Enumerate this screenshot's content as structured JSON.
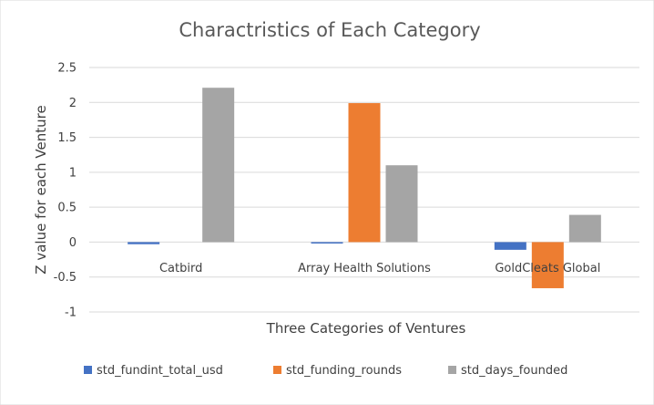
{
  "chart_data": {
    "type": "bar",
    "title": "Charactristics of Each Category",
    "xlabel": "Three Categories of Ventures",
    "ylabel": "Z value for each  Venture",
    "categories": [
      "Catbird",
      "Array Health Solutions",
      "GoldCleats Global"
    ],
    "series": [
      {
        "name": "std_fundint_total_usd",
        "color": "#4472C4",
        "values": [
          -0.03,
          -0.02,
          -0.11
        ]
      },
      {
        "name": "std_funding_rounds",
        "color": "#ED7D31",
        "values": [
          0.0,
          1.99,
          -0.66
        ]
      },
      {
        "name": "std_days_founded",
        "color": "#A5A5A5",
        "values": [
          2.21,
          1.1,
          0.39
        ]
      }
    ],
    "ylim": [
      -1,
      2.5
    ],
    "yticks": [
      2.5,
      2,
      1.5,
      1,
      0.5,
      0,
      -0.5,
      -1
    ],
    "ytick_labels": [
      "2.5",
      "2",
      "1.5",
      "1",
      "0.5",
      "0",
      "-0.5",
      "-1"
    ],
    "grid": true,
    "legend_position": "bottom"
  }
}
